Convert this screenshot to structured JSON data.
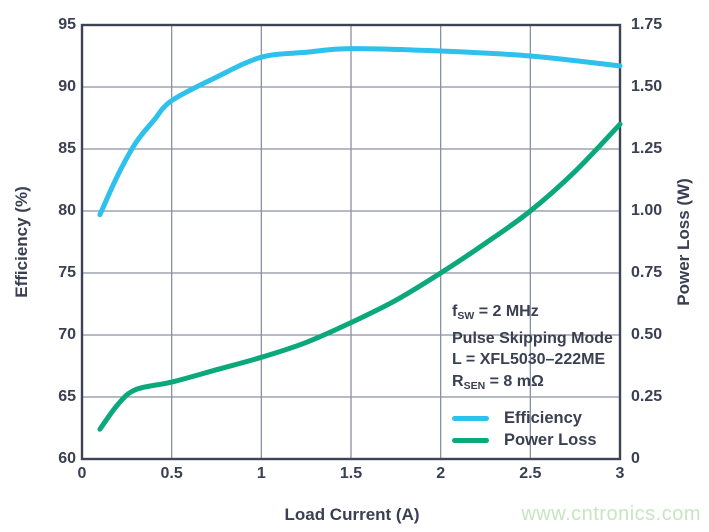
{
  "chart_data": {
    "type": "line",
    "title": "",
    "xlabel": "Load Current (A)",
    "ylabel_left": "Efficiency (%)",
    "ylabel_right": "Power Loss (W)",
    "xlim": [
      0,
      3
    ],
    "ylim_left": [
      60,
      95
    ],
    "ylim_right": [
      0,
      1.75
    ],
    "x_ticks": [
      0,
      0.5,
      1,
      1.5,
      2,
      2.5,
      3
    ],
    "x_tick_labels": [
      "0",
      "0.5",
      "1",
      "1.5",
      "2",
      "2.5",
      "3"
    ],
    "y_left_ticks": [
      95,
      90,
      85,
      80,
      75,
      70,
      65,
      60
    ],
    "y_left_tick_labels": [
      "95",
      "90",
      "85",
      "80",
      "75",
      "70",
      "65",
      "60"
    ],
    "y_right_ticks": [
      1.75,
      1.5,
      1.25,
      1.0,
      0.75,
      0.5,
      0.25,
      0
    ],
    "y_right_tick_labels": [
      "1.75",
      "1.50",
      "1.25",
      "1.00",
      "0.75",
      "0.50",
      "0.25",
      "0"
    ],
    "grid": true,
    "legend_position": "inside lower-right",
    "series": [
      {
        "name": "Efficiency",
        "axis": "left",
        "color": "#2EC1EC",
        "x": [
          0.1,
          0.2,
          0.3,
          0.4,
          0.5,
          0.75,
          1.0,
          1.25,
          1.5,
          2.0,
          2.5,
          3.0
        ],
        "y": [
          79.7,
          82.9,
          85.5,
          87.3,
          88.9,
          90.8,
          92.4,
          92.8,
          93.1,
          92.9,
          92.5,
          91.7
        ]
      },
      {
        "name": "Power Loss",
        "axis": "right",
        "color": "#0BA87B",
        "x": [
          0.1,
          0.2,
          0.3,
          0.5,
          0.75,
          1.0,
          1.25,
          1.5,
          1.75,
          2.0,
          2.25,
          2.5,
          2.75,
          3.0
        ],
        "y": [
          0.12,
          0.22,
          0.28,
          0.31,
          0.36,
          0.41,
          0.47,
          0.55,
          0.64,
          0.75,
          0.87,
          1.0,
          1.16,
          1.35
        ]
      }
    ],
    "annotation_lines": [
      [
        {
          "t": "f"
        },
        {
          "t": "SW",
          "sub": true
        },
        {
          "t": " = 2 MHz"
        }
      ],
      [
        {
          "t": "Pulse Skipping Mode"
        }
      ],
      [
        {
          "t": "L = XFL5030–222ME"
        }
      ],
      [
        {
          "t": "R"
        },
        {
          "t": "SEN",
          "sub": true
        },
        {
          "t": " = 8 mΩ"
        }
      ]
    ]
  },
  "colors": {
    "text": "#3A4052",
    "frame": "#3C4355",
    "grid": "#8A90A1",
    "background": "#FFFFFF",
    "efficiency_line": "#2EC1EC",
    "power_loss_line": "#0BA87B",
    "watermark": "#C6E6BF"
  },
  "watermark": {
    "text": "www.cntronics.com"
  }
}
